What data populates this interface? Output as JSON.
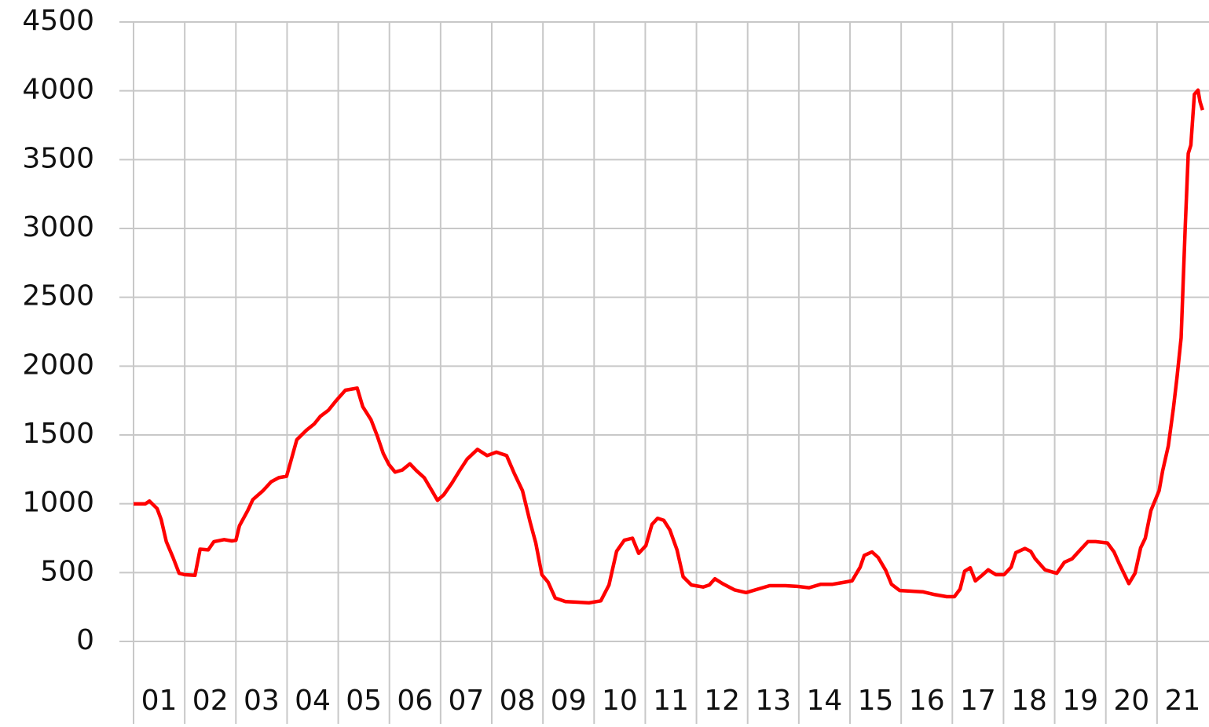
{
  "chart_data": {
    "type": "line",
    "x": [
      1.0,
      1.23,
      1.31,
      1.46,
      1.54,
      1.64,
      1.77,
      1.89,
      2.0,
      2.2,
      2.3,
      2.46,
      2.57,
      2.77,
      2.92,
      3.0,
      3.07,
      3.23,
      3.33,
      3.53,
      3.69,
      3.84,
      3.99,
      4.07,
      4.19,
      4.38,
      4.53,
      4.65,
      4.81,
      4.96,
      5.14,
      5.37,
      5.48,
      5.64,
      5.76,
      5.88,
      5.99,
      6.11,
      6.25,
      6.4,
      6.53,
      6.68,
      6.83,
      6.94,
      7.06,
      7.22,
      7.37,
      7.52,
      7.72,
      7.91,
      8.09,
      8.29,
      8.44,
      8.6,
      8.75,
      8.86,
      8.98,
      9.1,
      9.24,
      9.44,
      9.67,
      9.9,
      10.13,
      10.29,
      10.44,
      10.59,
      10.75,
      10.87,
      11.01,
      11.13,
      11.24,
      11.36,
      11.48,
      11.62,
      11.74,
      11.9,
      12.13,
      12.25,
      12.36,
      12.51,
      12.74,
      12.97,
      13.2,
      13.43,
      13.74,
      13.97,
      14.2,
      14.43,
      14.66,
      14.89,
      15.04,
      15.2,
      15.28,
      15.43,
      15.55,
      15.7,
      15.81,
      15.97,
      16.2,
      16.43,
      16.66,
      16.89,
      17.04,
      17.15,
      17.24,
      17.35,
      17.45,
      17.58,
      17.7,
      17.85,
      18.01,
      18.15,
      18.24,
      18.42,
      18.53,
      18.62,
      18.81,
      19.04,
      19.19,
      19.34,
      19.5,
      19.65,
      19.8,
      20.03,
      20.16,
      20.26,
      20.45,
      20.57,
      20.68,
      20.77,
      20.88,
      21.04,
      21.11,
      21.22,
      21.32,
      21.39,
      21.47,
      21.55,
      21.61,
      21.66,
      21.73,
      21.8,
      21.84,
      21.89
    ],
    "series": [
      {
        "color": "#ff0000",
        "values": [
          1000,
          1000,
          1020,
          965,
          885,
          725,
          610,
          495,
          485,
          480,
          670,
          665,
          725,
          740,
          730,
          735,
          840,
          950,
          1030,
          1095,
          1160,
          1190,
          1200,
          1305,
          1465,
          1535,
          1580,
          1635,
          1680,
          1750,
          1825,
          1840,
          1705,
          1610,
          1495,
          1365,
          1285,
          1230,
          1245,
          1290,
          1240,
          1190,
          1095,
          1025,
          1065,
          1150,
          1240,
          1325,
          1395,
          1350,
          1375,
          1350,
          1220,
          1095,
          865,
          715,
          485,
          430,
          315,
          290,
          285,
          280,
          295,
          410,
          655,
          735,
          750,
          640,
          695,
          850,
          895,
          880,
          810,
          665,
          470,
          410,
          395,
          410,
          455,
          420,
          375,
          355,
          380,
          405,
          405,
          400,
          390,
          415,
          415,
          430,
          440,
          540,
          625,
          650,
          610,
          515,
          415,
          370,
          365,
          360,
          340,
          325,
          325,
          380,
          510,
          535,
          440,
          480,
          520,
          485,
          485,
          540,
          645,
          675,
          655,
          600,
          520,
          495,
          575,
          600,
          665,
          725,
          725,
          715,
          650,
          565,
          420,
          495,
          680,
          750,
          950,
          1095,
          1240,
          1420,
          1695,
          1920,
          2205,
          3005,
          3545,
          3605,
          3975,
          4005,
          3920,
          3860
        ]
      }
    ],
    "xlim": [
      1,
      22
    ],
    "xticks": [
      {
        "value": 1,
        "label": "01"
      },
      {
        "value": 2,
        "label": "02"
      },
      {
        "value": 3,
        "label": "03"
      },
      {
        "value": 4,
        "label": "04"
      },
      {
        "value": 5,
        "label": "05"
      },
      {
        "value": 6,
        "label": "06"
      },
      {
        "value": 7,
        "label": "07"
      },
      {
        "value": 8,
        "label": "08"
      },
      {
        "value": 9,
        "label": "09"
      },
      {
        "value": 10,
        "label": "10"
      },
      {
        "value": 11,
        "label": "11"
      },
      {
        "value": 12,
        "label": "12"
      },
      {
        "value": 13,
        "label": "13"
      },
      {
        "value": 14,
        "label": "14"
      },
      {
        "value": 15,
        "label": "15"
      },
      {
        "value": 16,
        "label": "16"
      },
      {
        "value": 17,
        "label": "17"
      },
      {
        "value": 18,
        "label": "18"
      },
      {
        "value": 19,
        "label": "19"
      },
      {
        "value": 20,
        "label": "20"
      },
      {
        "value": 21,
        "label": "21"
      }
    ],
    "ylim": [
      0,
      4500
    ],
    "yticks": [
      0,
      500,
      1000,
      1500,
      2000,
      2500,
      3000,
      3500,
      4000,
      4500
    ],
    "grid": true
  }
}
